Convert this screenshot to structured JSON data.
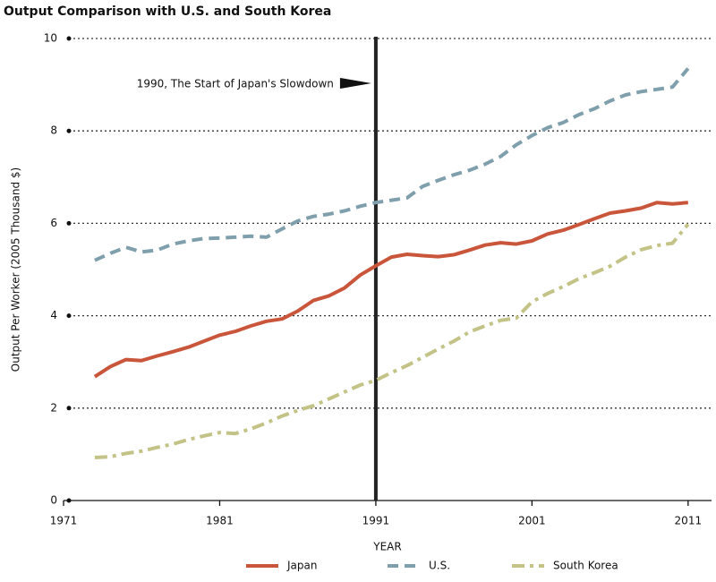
{
  "chart_data": {
    "type": "line",
    "title": "Output Comparison with U.S. and South Korea",
    "x_label": "YEAR",
    "y_label": "Output Per Worker (2005 Thousand $)",
    "x": [
      1973,
      1974,
      1975,
      1976,
      1977,
      1978,
      1979,
      1980,
      1981,
      1982,
      1983,
      1984,
      1985,
      1986,
      1987,
      1988,
      1989,
      1990,
      1991,
      1992,
      1993,
      1994,
      1995,
      1996,
      1997,
      1998,
      1999,
      2000,
      2001,
      2002,
      2003,
      2004,
      2005,
      2006,
      2007,
      2008,
      2009,
      2010,
      2011
    ],
    "series": [
      {
        "name": "Japan",
        "color": "#c9553b",
        "dash": "solid",
        "values": [
          2.68,
          2.9,
          3.05,
          3.03,
          3.13,
          3.22,
          3.32,
          3.45,
          3.58,
          3.66,
          3.78,
          3.88,
          3.93,
          4.1,
          4.33,
          4.43,
          4.6,
          4.88,
          5.08,
          5.27,
          5.33,
          5.3,
          5.28,
          5.32,
          5.42,
          5.53,
          5.58,
          5.55,
          5.62,
          5.77,
          5.85,
          5.97,
          6.1,
          6.22,
          6.27,
          6.33,
          6.45,
          6.42,
          6.45
        ]
      },
      {
        "name": "U.S.",
        "color": "#7f9fad",
        "dash": "dashed",
        "values": [
          5.2,
          5.35,
          5.48,
          5.38,
          5.42,
          5.55,
          5.62,
          5.67,
          5.68,
          5.7,
          5.72,
          5.7,
          5.88,
          6.05,
          6.15,
          6.2,
          6.27,
          6.37,
          6.45,
          6.5,
          6.55,
          6.8,
          6.93,
          7.05,
          7.15,
          7.28,
          7.45,
          7.7,
          7.9,
          8.07,
          8.18,
          8.35,
          8.48,
          8.65,
          8.78,
          8.85,
          8.9,
          8.95,
          9.35
        ]
      },
      {
        "name": "South Korea",
        "color": "#c3c388",
        "dash": "dashdot",
        "values": [
          0.93,
          0.95,
          1.02,
          1.07,
          1.15,
          1.22,
          1.32,
          1.4,
          1.47,
          1.45,
          1.55,
          1.68,
          1.83,
          1.95,
          2.05,
          2.2,
          2.35,
          2.5,
          2.6,
          2.77,
          2.92,
          3.1,
          3.28,
          3.45,
          3.65,
          3.78,
          3.9,
          3.95,
          4.3,
          4.48,
          4.63,
          4.8,
          4.93,
          5.07,
          5.27,
          5.43,
          5.52,
          5.57,
          5.98
        ]
      }
    ],
    "xlim": [
      1971,
      2012.5
    ],
    "ylim": [
      0,
      10
    ],
    "xticks": [
      1971,
      1981,
      1991,
      2001,
      2011
    ],
    "yticks": [
      0,
      2,
      4,
      6,
      8,
      10
    ],
    "grid": true,
    "legend": "bottom",
    "vline": {
      "x": 1991,
      "label": "1990, The Start of Japan's Slowdown"
    }
  }
}
